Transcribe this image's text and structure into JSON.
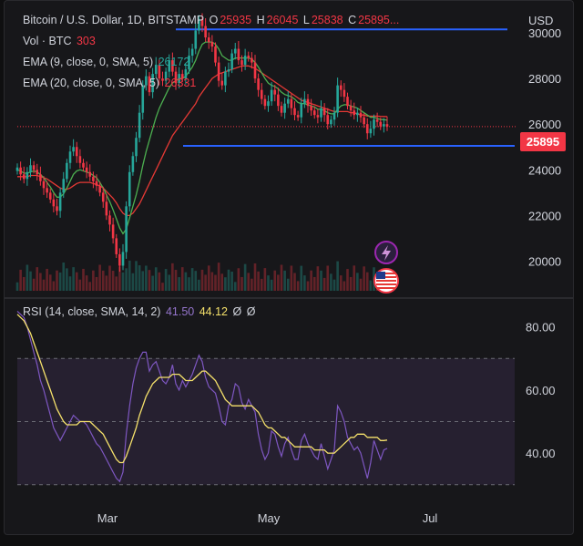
{
  "header": {
    "pair": "Bitcoin / U.S. Dollar, 1D, BITSTAMP",
    "o_label": "O",
    "o_value": "25935",
    "h_label": "H",
    "h_value": "26045",
    "l_label": "L",
    "l_value": "25838",
    "c_label": "C",
    "c_value": "25895...",
    "currency": "USD"
  },
  "indicators": {
    "vol_label": "Vol · BTC",
    "vol_value": "303",
    "ema9_label": "EMA (9, close, 0, SMA, 5)",
    "ema9_value": "26172",
    "ema20_label": "EMA (20, close, 0, SMA, 5)",
    "ema20_value": "26331",
    "rsi_label": "RSI (14, close, SMA, 14, 2)",
    "rsi_value": "41.50",
    "rsi_sma_value": "44.12",
    "rsi_extra1": "Ø",
    "rsi_extra2": "Ø"
  },
  "last_price_badge": "25895",
  "colors": {
    "up": "#26a69a",
    "down": "#f23645",
    "ema9": "#4caf50",
    "ema20": "#e53935",
    "rsi": "#7e57c2",
    "rsi_sma": "#f5e16b",
    "hline": "#2962ff"
  },
  "icons": [
    "lightning-icon",
    "us-flag-icon"
  ],
  "chart_data": [
    {
      "type": "candlestick",
      "title": "Bitcoin / U.S. Dollar, 1D, BITSTAMP",
      "y_ticks": [
        "30000",
        "28000",
        "26000",
        "24000",
        "22000",
        "20000"
      ],
      "x_ticks": [
        "Mar",
        "May",
        "Jul"
      ],
      "ylim": [
        18700,
        31000
      ],
      "horizontal_levels": [
        30150,
        25050
      ],
      "last_price": 25895,
      "close_series": [
        24100,
        23800,
        23600,
        23900,
        24200,
        24000,
        23800,
        23500,
        23200,
        23000,
        22700,
        22400,
        22200,
        23000,
        23600,
        24300,
        24800,
        25000,
        24600,
        24300,
        24100,
        23900,
        23700,
        23500,
        23300,
        23000,
        22600,
        22000,
        21600,
        21000,
        20300,
        19800,
        20400,
        22400,
        23900,
        24600,
        25400,
        26500,
        27700,
        28100,
        27400,
        28200,
        28600,
        28000,
        27900,
        28300,
        28800,
        28300,
        27800,
        28200,
        28000,
        28400,
        29000,
        29300,
        30100,
        30600,
        30300,
        29800,
        29600,
        29400,
        28700,
        27900,
        27700,
        28300,
        28400,
        29100,
        29300,
        28800,
        28600,
        29000,
        28900,
        28700,
        28000,
        27500,
        27100,
        26800,
        27000,
        27500,
        27300,
        26800,
        26500,
        26900,
        27100,
        26700,
        26400,
        26300,
        26900,
        27100,
        26800,
        26600,
        26400,
        26300,
        26700,
        26400,
        26000,
        26200,
        26500,
        27700,
        27500,
        27200,
        26800,
        26600,
        26400,
        26500,
        26300,
        26000,
        25600,
        25800,
        26200,
        26100,
        25900,
        26000,
        25895
      ],
      "ema9_series": [
        24000,
        23950,
        23850,
        23850,
        23900,
        23950,
        23900,
        23800,
        23650,
        23450,
        23250,
        23000,
        22800,
        22800,
        22950,
        23200,
        23500,
        23800,
        23950,
        24000,
        23950,
        23900,
        23850,
        23750,
        23650,
        23450,
        23200,
        22900,
        22600,
        22250,
        21850,
        21450,
        21200,
        21400,
        21900,
        22400,
        22900,
        23500,
        24200,
        24800,
        25300,
        25800,
        26300,
        26700,
        27000,
        27300,
        27600,
        27800,
        27900,
        28000,
        28000,
        28100,
        28300,
        28500,
        28800,
        29200,
        29500,
        29600,
        29600,
        29600,
        29500,
        29300,
        29000,
        28900,
        28800,
        28800,
        28900,
        28900,
        28900,
        28900,
        28900,
        28850,
        28700,
        28500,
        28250,
        28000,
        27800,
        27700,
        27650,
        27550,
        27400,
        27300,
        27250,
        27200,
        27100,
        26950,
        26900,
        26900,
        26850,
        26800,
        26750,
        26650,
        26650,
        26600,
        26500,
        26450,
        26450,
        26650,
        26800,
        26850,
        26850,
        26800,
        26750,
        26700,
        26600,
        26500,
        26400,
        26300,
        26300,
        26250,
        26200,
        26200,
        26172
      ],
      "ema20_series": [
        23700,
        23700,
        23700,
        23700,
        23750,
        23750,
        23750,
        23700,
        23650,
        23600,
        23500,
        23400,
        23300,
        23200,
        23150,
        23150,
        23200,
        23300,
        23400,
        23450,
        23450,
        23450,
        23450,
        23400,
        23350,
        23300,
        23200,
        23050,
        22900,
        22750,
        22550,
        22300,
        22100,
        22000,
        22000,
        22100,
        22300,
        22500,
        22800,
        23100,
        23400,
        23700,
        24000,
        24300,
        24600,
        24900,
        25200,
        25500,
        25700,
        25900,
        26100,
        26300,
        26500,
        26700,
        26900,
        27200,
        27400,
        27600,
        27800,
        28000,
        28100,
        28200,
        28250,
        28300,
        28350,
        28400,
        28450,
        28500,
        28550,
        28550,
        28550,
        28500,
        28450,
        28350,
        28250,
        28150,
        28050,
        27950,
        27850,
        27750,
        27650,
        27550,
        27450,
        27350,
        27250,
        27150,
        27050,
        27000,
        26950,
        26900,
        26850,
        26800,
        26750,
        26700,
        26650,
        26600,
        26550,
        26550,
        26550,
        26550,
        26550,
        26500,
        26500,
        26450,
        26400,
        26400,
        26350,
        26350,
        26350,
        26350,
        26340,
        26335,
        26331
      ]
    },
    {
      "type": "line",
      "title": "RSI (14, close, SMA, 14, 2)",
      "y_ticks": [
        "80.00",
        "60.00",
        "40.00"
      ],
      "ylim": [
        25,
        88
      ],
      "bands": [
        70,
        50,
        30
      ],
      "series": [
        {
          "name": "RSI",
          "values": [
            85,
            84,
            83,
            80,
            76,
            72,
            68,
            63,
            60,
            56,
            52,
            48,
            46,
            44,
            46,
            48,
            50,
            52,
            51,
            50,
            50,
            49,
            47,
            45,
            43,
            42,
            40,
            38,
            36,
            34,
            32,
            31,
            34,
            46,
            55,
            62,
            67,
            70,
            72,
            72,
            66,
            68,
            69,
            66,
            63,
            62,
            64,
            68,
            62,
            60,
            63,
            61,
            63,
            65,
            68,
            71,
            69,
            64,
            61,
            60,
            59,
            55,
            50,
            49,
            55,
            57,
            62,
            61,
            56,
            54,
            57,
            55,
            53,
            46,
            41,
            38,
            40,
            47,
            46,
            42,
            39,
            43,
            45,
            41,
            38,
            38,
            44,
            46,
            43,
            41,
            39,
            38,
            43,
            39,
            35,
            38,
            41,
            55,
            53,
            50,
            45,
            43,
            41,
            42,
            40,
            36,
            32,
            37,
            44,
            41,
            38,
            41,
            41.5
          ]
        },
        {
          "name": "SMA",
          "values": [
            84,
            83,
            82,
            80,
            78,
            75,
            72,
            69,
            66,
            63,
            60,
            57,
            54,
            52,
            50,
            49,
            49,
            49,
            49,
            50,
            50,
            50,
            50,
            49,
            48,
            47,
            46,
            44,
            42,
            40,
            38,
            37,
            37,
            39,
            42,
            45,
            48,
            52,
            55,
            58,
            60,
            62,
            63,
            64,
            64,
            64,
            64,
            65,
            65,
            65,
            64,
            63,
            63,
            63,
            64,
            65,
            66,
            66,
            65,
            64,
            63,
            61,
            59,
            57,
            56,
            55,
            55,
            55,
            55,
            55,
            55,
            55,
            54,
            53,
            51,
            49,
            48,
            48,
            47,
            46,
            45,
            45,
            44,
            43,
            42,
            42,
            42,
            42,
            42,
            42,
            41,
            41,
            41,
            41,
            40,
            40,
            40,
            41,
            42,
            43,
            44,
            45,
            45,
            46,
            46,
            46,
            45,
            45,
            45,
            45,
            44,
            44,
            44.12
          ]
        }
      ]
    }
  ]
}
